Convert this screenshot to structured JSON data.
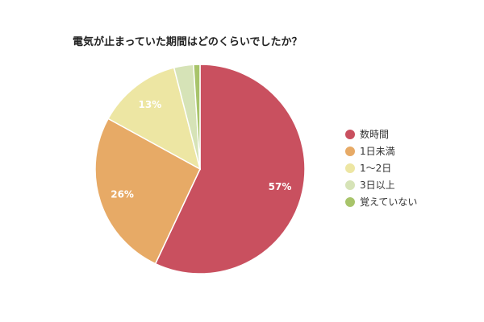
{
  "chart_data": {
    "type": "pie",
    "title": "電気が止まっていた期間はどのくらいでしたか？",
    "slices": [
      {
        "label": "数時間",
        "value": 57,
        "value_label": "57%",
        "color": "#c9505f"
      },
      {
        "label": "1日未満",
        "value": 26,
        "value_label": "26%",
        "color": "#e7aa66"
      },
      {
        "label": "1〜2日",
        "value": 13,
        "value_label": "13%",
        "color": "#ede6a3"
      },
      {
        "label": "3日以上",
        "value": 3,
        "value_label": "",
        "color": "#d6e3b7"
      },
      {
        "label": "覚えていない",
        "value": 1,
        "value_label": "",
        "color": "#a8c46a"
      }
    ],
    "legend_position": "right"
  },
  "colors": {
    "label_text": "#ffffff",
    "title_text": "#222222",
    "legend_text": "#333333",
    "slice_border": "#ffffff"
  }
}
